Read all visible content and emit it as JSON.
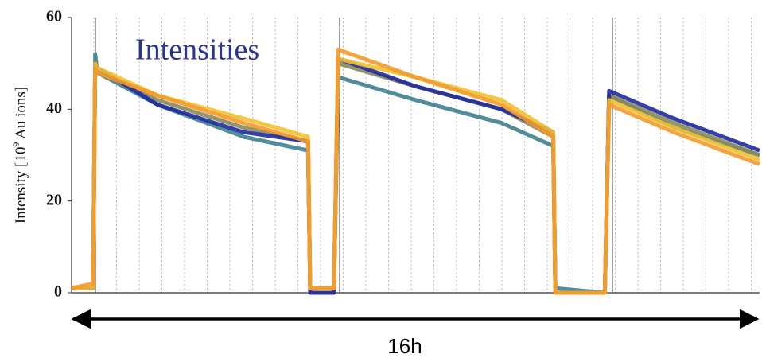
{
  "chart_data": {
    "type": "line",
    "title": "Intensities",
    "ylabel_parts": [
      "Intensity [10",
      "9",
      " Au ions]"
    ],
    "annotation": "16h",
    "cut_label": "16",
    "x": [
      0,
      0.5,
      0.55,
      0.6,
      2,
      4,
      5.5,
      5.55,
      6.1,
      6.2,
      8,
      10,
      11.2,
      11.25,
      12.4,
      12.5,
      14,
      16
    ],
    "xlim": [
      0,
      16
    ],
    "ylim": [
      0,
      60
    ],
    "yticks": [
      0,
      20,
      40,
      60
    ],
    "series": [
      {
        "color": "#3d7f8f",
        "values": [
          1,
          1,
          52,
          48,
          41,
          34,
          31,
          1,
          1,
          47,
          42,
          37,
          32,
          1,
          0,
          43,
          36,
          30
        ]
      },
      {
        "color": "#8a8a5a",
        "values": [
          1,
          1,
          50,
          48,
          42,
          36,
          33,
          0,
          0,
          50,
          45,
          40,
          34,
          0,
          0,
          43,
          37,
          30
        ]
      },
      {
        "color": "#1f2a9e",
        "values": [
          1,
          1,
          50,
          49,
          41,
          35,
          33,
          0,
          0,
          51,
          45,
          40,
          35,
          0,
          0,
          44,
          38,
          31
        ]
      },
      {
        "color": "#f2c12e",
        "values": [
          1,
          1,
          50,
          49,
          43,
          38,
          34,
          1,
          1,
          51,
          47,
          42,
          35,
          0,
          0,
          42,
          36,
          29
        ]
      },
      {
        "color": "#f39a2b",
        "values": [
          1,
          2,
          49,
          48,
          43,
          37,
          33,
          1,
          1,
          53,
          47,
          41,
          34,
          0,
          0,
          41,
          35,
          28
        ]
      }
    ]
  }
}
